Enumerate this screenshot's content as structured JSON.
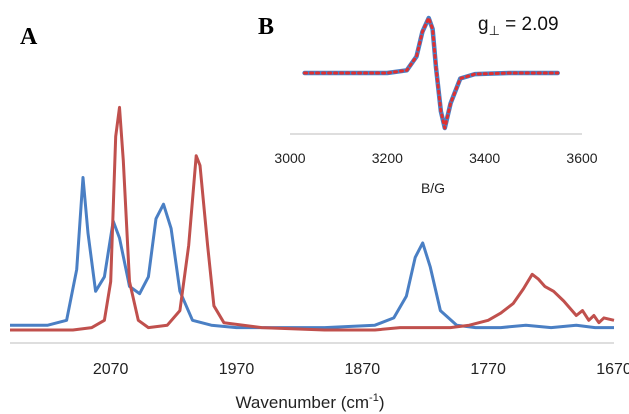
{
  "chart_data": [
    {
      "panel": "A",
      "type": "line",
      "xlabel": "Wavenumber (cm",
      "xlabel_sup": "-1",
      "xlabel_close": ")",
      "xlim": [
        2150,
        1670
      ],
      "x_reversed": true,
      "ylim": [
        0,
        1
      ],
      "ticks": [
        "2070",
        "1970",
        "1870",
        "1770",
        "1670"
      ],
      "tick_values": [
        2070,
        1970,
        1870,
        1770,
        1670
      ],
      "grid": false,
      "series": [
        {
          "color": "#4a7fc4",
          "points": [
            [
              2150,
              0.02
            ],
            [
              2120,
              0.02
            ],
            [
              2105,
              0.04
            ],
            [
              2097,
              0.25
            ],
            [
              2092,
              0.63
            ],
            [
              2088,
              0.4
            ],
            [
              2082,
              0.16
            ],
            [
              2075,
              0.22
            ],
            [
              2068,
              0.45
            ],
            [
              2063,
              0.38
            ],
            [
              2055,
              0.18
            ],
            [
              2047,
              0.15
            ],
            [
              2040,
              0.22
            ],
            [
              2034,
              0.46
            ],
            [
              2028,
              0.52
            ],
            [
              2022,
              0.42
            ],
            [
              2015,
              0.16
            ],
            [
              2005,
              0.04
            ],
            [
              1990,
              0.02
            ],
            [
              1970,
              0.01
            ],
            [
              1900,
              0.01
            ],
            [
              1860,
              0.02
            ],
            [
              1845,
              0.05
            ],
            [
              1835,
              0.14
            ],
            [
              1828,
              0.3
            ],
            [
              1822,
              0.36
            ],
            [
              1816,
              0.26
            ],
            [
              1808,
              0.08
            ],
            [
              1795,
              0.02
            ],
            [
              1780,
              0.01
            ],
            [
              1760,
              0.01
            ],
            [
              1740,
              0.02
            ],
            [
              1720,
              0.01
            ],
            [
              1700,
              0.02
            ],
            [
              1685,
              0.01
            ],
            [
              1670,
              0.01
            ]
          ]
        },
        {
          "color": "#c0504d",
          "points": [
            [
              2150,
              0.0
            ],
            [
              2100,
              0.0
            ],
            [
              2085,
              0.01
            ],
            [
              2075,
              0.04
            ],
            [
              2070,
              0.2
            ],
            [
              2066,
              0.8
            ],
            [
              2063,
              0.92
            ],
            [
              2060,
              0.7
            ],
            [
              2055,
              0.2
            ],
            [
              2048,
              0.04
            ],
            [
              2040,
              0.01
            ],
            [
              2025,
              0.02
            ],
            [
              2015,
              0.08
            ],
            [
              2008,
              0.35
            ],
            [
              2002,
              0.72
            ],
            [
              1999,
              0.68
            ],
            [
              1993,
              0.35
            ],
            [
              1988,
              0.1
            ],
            [
              1980,
              0.03
            ],
            [
              1950,
              0.01
            ],
            [
              1900,
              0.0
            ],
            [
              1860,
              0.0
            ],
            [
              1840,
              0.01
            ],
            [
              1820,
              0.01
            ],
            [
              1800,
              0.01
            ],
            [
              1785,
              0.02
            ],
            [
              1770,
              0.04
            ],
            [
              1760,
              0.07
            ],
            [
              1750,
              0.11
            ],
            [
              1742,
              0.17
            ],
            [
              1735,
              0.23
            ],
            [
              1730,
              0.21
            ],
            [
              1725,
              0.18
            ],
            [
              1718,
              0.16
            ],
            [
              1710,
              0.12
            ],
            [
              1700,
              0.06
            ],
            [
              1695,
              0.08
            ],
            [
              1690,
              0.04
            ],
            [
              1686,
              0.06
            ],
            [
              1682,
              0.03
            ],
            [
              1678,
              0.05
            ],
            [
              1670,
              0.04
            ]
          ]
        }
      ]
    },
    {
      "panel": "B",
      "type": "line",
      "title": "g",
      "title_sub": "⊥",
      "title_rest": " = 2.09",
      "xlabel": "B/G",
      "xlim": [
        3000,
        3600
      ],
      "ticks": [
        "3000",
        "3200",
        "3400",
        "3600"
      ],
      "tick_values": [
        3000,
        3200,
        3400,
        3600
      ],
      "ylim": [
        -1,
        1
      ],
      "grid": false,
      "series": [
        {
          "color": "#4a7fc4",
          "style": "solid",
          "points": [
            [
              3030,
              0.0
            ],
            [
              3200,
              0.0
            ],
            [
              3240,
              0.05
            ],
            [
              3260,
              0.3
            ],
            [
              3272,
              0.75
            ],
            [
              3285,
              1.0
            ],
            [
              3293,
              0.8
            ],
            [
              3300,
              0.1
            ],
            [
              3310,
              -0.7
            ],
            [
              3318,
              -1.0
            ],
            [
              3330,
              -0.55
            ],
            [
              3350,
              -0.1
            ],
            [
              3380,
              -0.02
            ],
            [
              3450,
              0.0
            ],
            [
              3550,
              0.0
            ]
          ]
        },
        {
          "color": "#e03030",
          "style": "dotted",
          "points": [
            [
              3030,
              0.0
            ],
            [
              3200,
              0.0
            ],
            [
              3240,
              0.05
            ],
            [
              3260,
              0.3
            ],
            [
              3272,
              0.75
            ],
            [
              3285,
              1.0
            ],
            [
              3293,
              0.8
            ],
            [
              3300,
              0.1
            ],
            [
              3310,
              -0.7
            ],
            [
              3318,
              -1.0
            ],
            [
              3330,
              -0.55
            ],
            [
              3350,
              -0.1
            ],
            [
              3380,
              -0.02
            ],
            [
              3450,
              0.0
            ],
            [
              3550,
              0.0
            ]
          ]
        }
      ]
    }
  ]
}
